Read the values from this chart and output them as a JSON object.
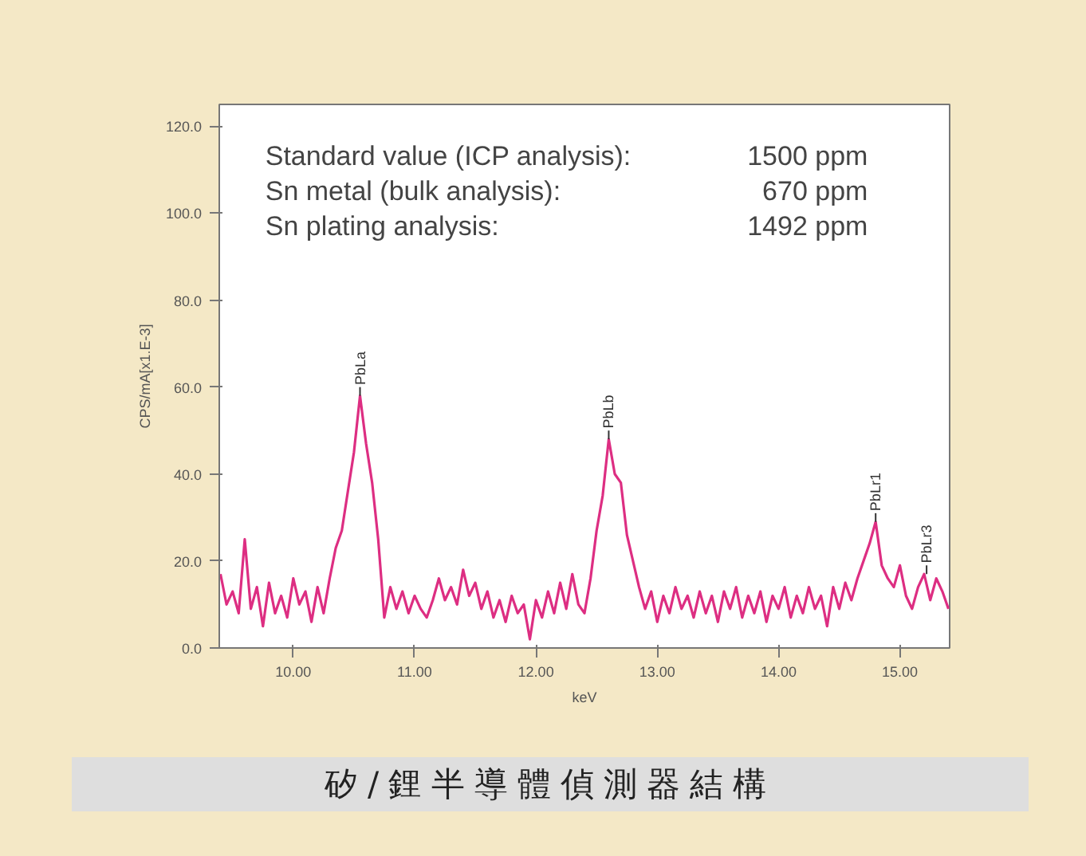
{
  "chart_data": {
    "type": "line",
    "xlabel": "keV",
    "ylabel": "CPS/mA[x1.E-3]",
    "x": [
      9.4,
      9.45,
      9.5,
      9.55,
      9.6,
      9.65,
      9.7,
      9.75,
      9.8,
      9.85,
      9.9,
      9.95,
      10.0,
      10.05,
      10.1,
      10.15,
      10.2,
      10.25,
      10.3,
      10.35,
      10.4,
      10.45,
      10.5,
      10.55,
      10.6,
      10.65,
      10.7,
      10.75,
      10.8,
      10.85,
      10.9,
      10.95,
      11.0,
      11.05,
      11.1,
      11.15,
      11.2,
      11.25,
      11.3,
      11.35,
      11.4,
      11.45,
      11.5,
      11.55,
      11.6,
      11.65,
      11.7,
      11.75,
      11.8,
      11.85,
      11.9,
      11.95,
      12.0,
      12.05,
      12.1,
      12.15,
      12.2,
      12.25,
      12.3,
      12.35,
      12.4,
      12.45,
      12.5,
      12.55,
      12.6,
      12.65,
      12.7,
      12.75,
      12.8,
      12.85,
      12.9,
      12.95,
      13.0,
      13.05,
      13.1,
      13.15,
      13.2,
      13.25,
      13.3,
      13.35,
      13.4,
      13.45,
      13.5,
      13.55,
      13.6,
      13.65,
      13.7,
      13.75,
      13.8,
      13.85,
      13.9,
      13.95,
      14.0,
      14.05,
      14.1,
      14.15,
      14.2,
      14.25,
      14.3,
      14.35,
      14.4,
      14.45,
      14.5,
      14.55,
      14.6,
      14.65,
      14.7,
      14.75,
      14.8,
      14.85,
      14.9,
      14.95,
      15.0,
      15.05,
      15.1,
      15.15,
      15.2,
      15.25,
      15.3,
      15.35,
      15.4
    ],
    "series": [
      {
        "color": "#dd2e82",
        "values": [
          17,
          10,
          13,
          8,
          25,
          9,
          14,
          5,
          15,
          8,
          12,
          7,
          16,
          10,
          13,
          6,
          14,
          8,
          16,
          23,
          27,
          36,
          45,
          58,
          47,
          38,
          25,
          7,
          14,
          9,
          13,
          8,
          12,
          9,
          7,
          11,
          16,
          11,
          14,
          10,
          18,
          12,
          15,
          9,
          13,
          7,
          11,
          6,
          12,
          8,
          10,
          2,
          11,
          7,
          13,
          8,
          15,
          9,
          17,
          10,
          8,
          16,
          27,
          35,
          48,
          40,
          38,
          26,
          20,
          14,
          9,
          13,
          6,
          12,
          8,
          14,
          9,
          12,
          7,
          13,
          8,
          12,
          6,
          13,
          9,
          14,
          7,
          12,
          8,
          13,
          6,
          12,
          9,
          14,
          7,
          12,
          8,
          14,
          9,
          12,
          5,
          14,
          9,
          15,
          11,
          16,
          20,
          24,
          29,
          19,
          16,
          14,
          19,
          12,
          9,
          14,
          17,
          11,
          16,
          13,
          9
        ]
      }
    ],
    "xlim": [
      9.39,
      15.41
    ],
    "ylim": [
      0,
      125
    ],
    "xticks": [
      {
        "value": 10,
        "label": "10.00"
      },
      {
        "value": 11,
        "label": "11.00"
      },
      {
        "value": 12,
        "label": "12.00"
      },
      {
        "value": 13,
        "label": "13.00"
      },
      {
        "value": 14,
        "label": "14.00"
      },
      {
        "value": 15,
        "label": "15.00"
      }
    ],
    "yticks": [
      {
        "value": 0,
        "label": "0.0"
      },
      {
        "value": 20,
        "label": "20.0"
      },
      {
        "value": 40,
        "label": "40.0"
      },
      {
        "value": 60,
        "label": "60.0"
      },
      {
        "value": 80,
        "label": "80.0"
      },
      {
        "value": 100,
        "label": "100.0"
      },
      {
        "value": 120,
        "label": "120.0"
      }
    ],
    "grid": false,
    "marker": "none",
    "line_style": "solid",
    "annotations": [
      {
        "text": "PbLa",
        "x": 10.55,
        "y": 58
      },
      {
        "text": "PbLb",
        "x": 12.6,
        "y": 48
      },
      {
        "text": "PbLr1",
        "x": 14.8,
        "y": 29
      },
      {
        "text": "PbLr3",
        "x": 15.22,
        "y": 17
      },
      "Standard value (ICP analysis):",
      "1500 ppm",
      "Sn metal (bulk analysis):",
      "670 ppm",
      "Sn plating analysis:",
      "1492 ppm",
      "矽/鋰半導體偵測器結構"
    ]
  }
}
